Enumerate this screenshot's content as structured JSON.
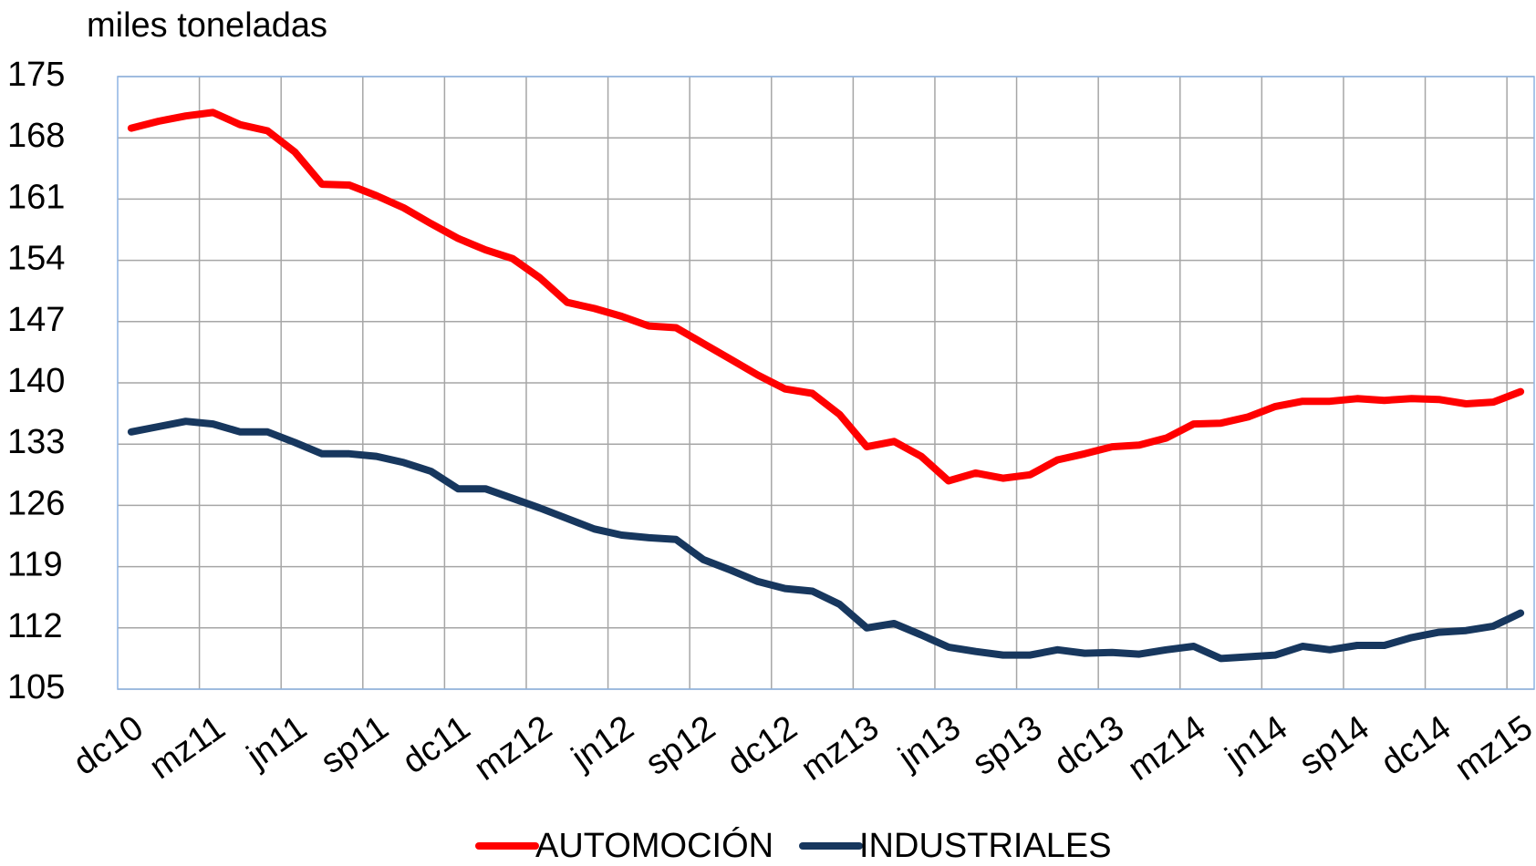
{
  "chart_data": {
    "type": "line",
    "title": "miles toneladas",
    "categories": [
      "dc10",
      null,
      null,
      "mz11",
      null,
      null,
      "jn11",
      null,
      null,
      "sp11",
      null,
      null,
      "dc11",
      null,
      null,
      "mz12",
      null,
      null,
      "jn12",
      null,
      null,
      "sp12",
      null,
      null,
      "dc12",
      null,
      null,
      "mz13",
      null,
      null,
      "jn13",
      null,
      null,
      "sp13",
      null,
      null,
      "dc13",
      null,
      null,
      "mz14",
      null,
      null,
      "jn14",
      null,
      null,
      "sp14",
      null,
      null,
      "dc14",
      null,
      null,
      "mz15"
    ],
    "series": [
      {
        "name": "AUTOMOCIÓN",
        "color": "#ff0000",
        "values": [
          169.1,
          169.9,
          170.5,
          170.9,
          169.5,
          168.8,
          166.4,
          162.7,
          162.6,
          161.4,
          160.0,
          158.2,
          156.5,
          155.2,
          154.2,
          152.0,
          149.2,
          148.5,
          147.6,
          146.5,
          146.3,
          144.5,
          142.7,
          140.9,
          139.3,
          138.8,
          136.4,
          132.7,
          133.3,
          131.6,
          128.8,
          129.7,
          129.1,
          129.5,
          131.2,
          131.9,
          132.7,
          132.9,
          133.7,
          135.3,
          135.4,
          136.1,
          137.3,
          137.9,
          137.9,
          138.2,
          138.0,
          138.2,
          138.1,
          137.6,
          137.8,
          139.0
        ]
      },
      {
        "name": "INDUSTRIALES",
        "color": "#17375e",
        "values": [
          134.4,
          135.0,
          135.6,
          135.3,
          134.4,
          134.4,
          133.2,
          131.9,
          131.9,
          131.6,
          130.9,
          129.9,
          127.9,
          127.9,
          126.8,
          125.7,
          124.5,
          123.3,
          122.6,
          122.3,
          122.1,
          119.8,
          118.6,
          117.3,
          116.5,
          116.2,
          114.7,
          112.0,
          112.5,
          111.2,
          109.8,
          109.3,
          108.9,
          108.9,
          109.5,
          109.1,
          109.2,
          109.0,
          109.5,
          109.9,
          108.5,
          108.7,
          108.9,
          109.9,
          109.5,
          110.0,
          110.0,
          110.9,
          111.5,
          111.7,
          112.2,
          113.7
        ]
      }
    ],
    "ylim": [
      105,
      175
    ],
    "yticks": [
      105,
      112,
      119,
      126,
      133,
      140,
      147,
      154,
      161,
      168,
      175
    ],
    "grid": true,
    "legend": "bottom"
  }
}
